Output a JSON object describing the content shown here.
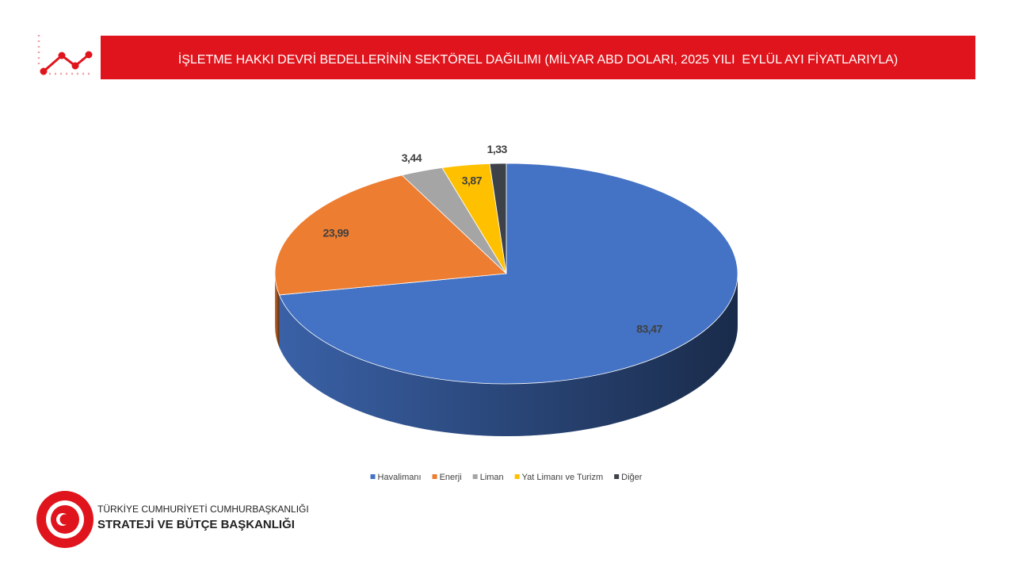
{
  "chart_data": {
    "type": "pie3d",
    "title": "İŞLETME HAKKI DEVRİ BEDELLERİNİN SEKTÖREL DAĞILIMI (MİLYAR ABD DOLARI, 2025 YILI  EYLÜL AYI FİYATLARIYLA)",
    "categories": [
      "Havalimanı",
      "Enerji",
      "Liman",
      "Yat Limanı ve Turizm",
      "Diğer"
    ],
    "values": [
      83.47,
      23.99,
      3.44,
      3.87,
      1.33
    ],
    "value_labels": [
      "83,47",
      "23,99",
      "3,44",
      "3,87",
      "1,33"
    ],
    "colors": [
      "#4472c4",
      "#ed7d31",
      "#a5a5a5",
      "#ffc000",
      "#3d4148"
    ],
    "legend": "bottom"
  },
  "footer": {
    "line1": "TÜRKİYE CUMHURİYETİ CUMHURBAŞKANLIĞI",
    "line2": "STRATEJİ VE BÜTÇE BAŞKANLIĞI"
  }
}
